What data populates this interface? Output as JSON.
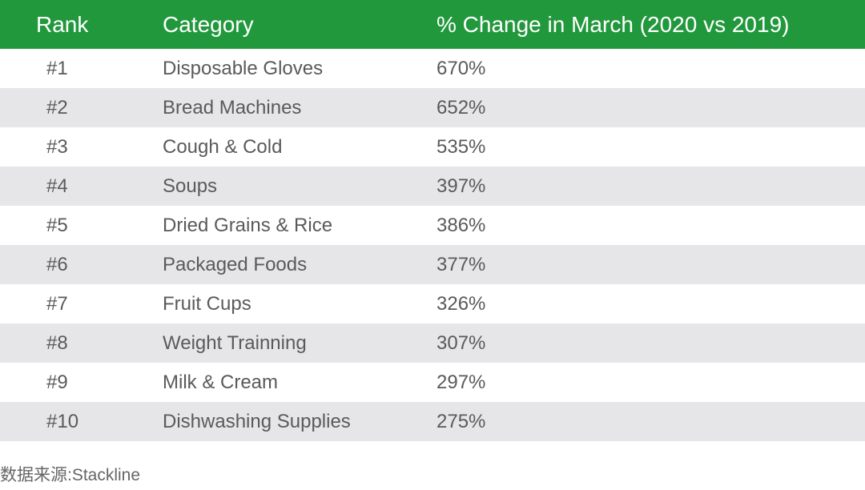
{
  "chart_data": {
    "type": "table",
    "columns": [
      "Rank",
      "Category",
      "% Change in March (2020 vs 2019)"
    ],
    "rows": [
      {
        "rank": "#1",
        "category": "Disposable Gloves",
        "change": "670%"
      },
      {
        "rank": "#2",
        "category": "Bread Machines",
        "change": "652%"
      },
      {
        "rank": "#3",
        "category": "Cough & Cold",
        "change": "535%"
      },
      {
        "rank": "#4",
        "category": "Soups",
        "change": "397%"
      },
      {
        "rank": "#5",
        "category": "Dried Grains & Rice",
        "change": "386%"
      },
      {
        "rank": "#6",
        "category": "Packaged Foods",
        "change": "377%"
      },
      {
        "rank": "#7",
        "category": "Fruit Cups",
        "change": "326%"
      },
      {
        "rank": "#8",
        "category": "Weight Trainning",
        "change": "307%"
      },
      {
        "rank": "#9",
        "category": "Milk & Cream",
        "change": "297%"
      },
      {
        "rank": "#10",
        "category": "Dishwashing Supplies",
        "change": "275%"
      }
    ],
    "source": "数据来源:Stackline"
  },
  "colors": {
    "header_bg": "#22983c",
    "header_text": "#ffffff",
    "row_alt_bg": "#e6e6e8",
    "body_text": "#5a5a5a"
  }
}
